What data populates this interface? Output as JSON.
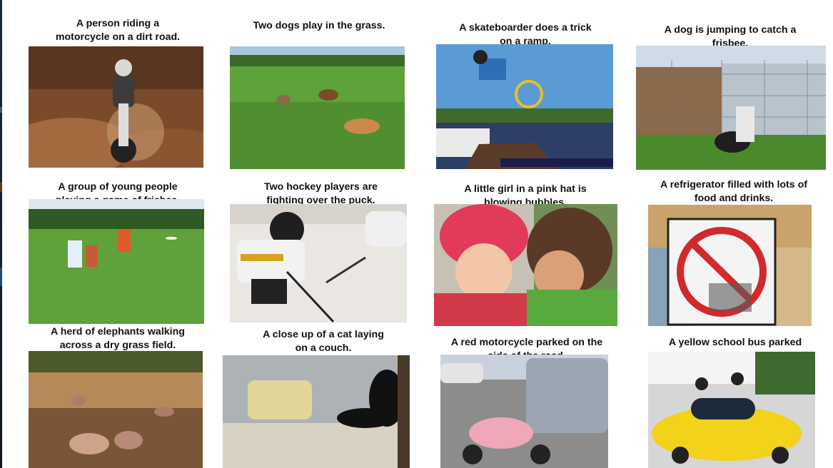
{
  "captions": [
    "A person riding a\nmotorcycle on a dirt road.",
    "Two dogs play in the grass.",
    "A skateboarder does a trick\non a ramp.",
    "A dog is jumping to catch a\nfrisbee.",
    "A group of young people\nplaying a game of frisbee.",
    "Two hockey players are\nfighting over the puck.",
    "A little girl in a pink hat is\nblowing bubbles.",
    "A refrigerator filled with lots of\nfood and drinks.",
    "A herd of elephants walking\nacross a dry grass field.",
    "A close up of a cat laying\non a couch.",
    "A red motorcycle parked on the\nside of the road.",
    "A yellow school bus parked\nin a parking lot."
  ],
  "image_subjects": [
    "motocross-rider-on-dirt",
    "dogs-on-grass-field",
    "bmx-rider-jumping-over-ramp",
    "man-with-black-dog-by-fence",
    "people-playing-frisbee-on-field",
    "youth-hockey-player-on-ice",
    "two-children-with-pink-hat",
    "no-parking-sign-with-stickers",
    "elephants-on-dry-plain",
    "black-cat-on-couch",
    "pink-scooter-in-parking-lot",
    "yellow-decorated-car"
  ]
}
